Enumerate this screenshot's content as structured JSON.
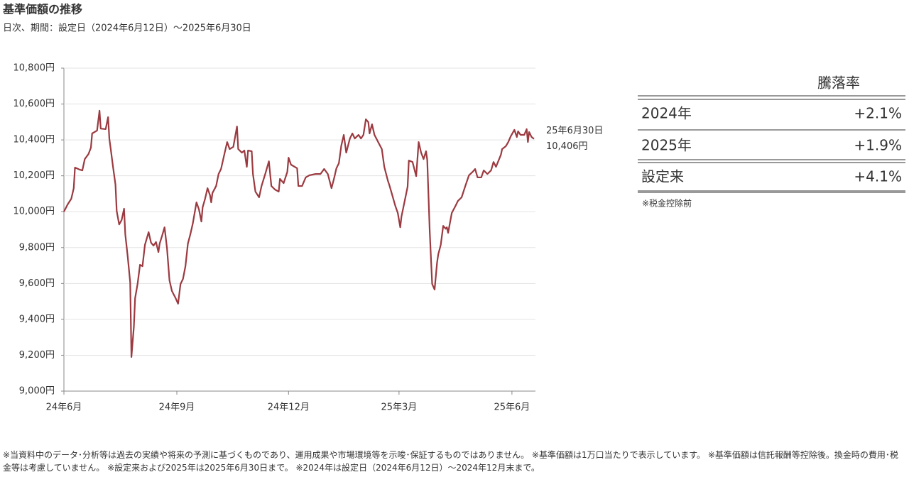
{
  "chart_data": {
    "type": "line",
    "title": "基準価額の推移",
    "subtitle": "日次、期間：設定日（2024年6月12日）～2025年6月30日",
    "color": "#9b3a40",
    "grid": true,
    "x": [
      "2024-06-12",
      "2024-06-15",
      "2024-06-18",
      "2024-06-20",
      "2024-06-21",
      "2024-06-25",
      "2024-06-27",
      "2024-06-29",
      "2024-07-02",
      "2024-07-04",
      "2024-07-05",
      "2024-07-09",
      "2024-07-11",
      "2024-07-12",
      "2024-07-16",
      "2024-07-18",
      "2024-07-19",
      "2024-07-20",
      "2024-07-22",
      "2024-07-24",
      "2024-07-25",
      "2024-07-27",
      "2024-07-29",
      "2024-07-31",
      "2024-08-01",
      "2024-08-03",
      "2024-08-05",
      "2024-08-06",
      "2024-08-08",
      "2024-08-09",
      "2024-08-11",
      "2024-08-13",
      "2024-08-15",
      "2024-08-17",
      "2024-08-19",
      "2024-08-20",
      "2024-08-22",
      "2024-08-24",
      "2024-08-26",
      "2024-08-28",
      "2024-08-29",
      "2024-08-31",
      "2024-09-02",
      "2024-09-04",
      "2024-09-06",
      "2024-09-08",
      "2024-09-11",
      "2024-09-13",
      "2024-09-15",
      "2024-09-17",
      "2024-09-19",
      "2024-09-21",
      "2024-09-23",
      "2024-09-25",
      "2024-09-28",
      "2024-09-30",
      "2024-10-02",
      "2024-10-03",
      "2024-10-05",
      "2024-10-07",
      "2024-10-09",
      "2024-10-10",
      "2024-10-11",
      "2024-10-14",
      "2024-10-16",
      "2024-10-18",
      "2024-10-21",
      "2024-10-23",
      "2024-10-25",
      "2024-10-28",
      "2024-10-31",
      "2024-11-01",
      "2024-11-04",
      "2024-11-06",
      "2024-11-08",
      "2024-11-09",
      "2024-11-12",
      "2024-11-13",
      "2024-11-15",
      "2024-11-18",
      "2024-11-20",
      "2024-11-23",
      "2024-11-26",
      "2024-11-28",
      "2024-12-01",
      "2024-12-04",
      "2024-12-05",
      "2024-12-08",
      "2024-12-11",
      "2024-12-12",
      "2024-12-14",
      "2024-12-19",
      "2024-12-20",
      "2024-12-23",
      "2024-12-26",
      "2024-12-29",
      "2025-01-03",
      "2025-01-07",
      "2025-01-10",
      "2025-01-13",
      "2025-01-16",
      "2025-01-18",
      "2025-01-20",
      "2025-01-22",
      "2025-01-24",
      "2025-01-26",
      "2025-01-28",
      "2025-01-31",
      "2025-02-02",
      "2025-02-04",
      "2025-02-07",
      "2025-02-09",
      "2025-02-11",
      "2025-02-13",
      "2025-02-15",
      "2025-02-16",
      "2025-02-18",
      "2025-02-20",
      "2025-02-23",
      "2025-02-26",
      "2025-02-28",
      "2025-03-03",
      "2025-03-04",
      "2025-03-06",
      "2025-03-09",
      "2025-03-11",
      "2025-03-13",
      "2025-03-14",
      "2025-03-17",
      "2025-03-19",
      "2025-03-20",
      "2025-03-23",
      "2025-03-26",
      "2025-03-28",
      "2025-03-30",
      "2025-04-01",
      "2025-04-03",
      "2025-04-04",
      "2025-04-06",
      "2025-04-08",
      "2025-04-10",
      "2025-04-12",
      "2025-04-13",
      "2025-04-15",
      "2025-04-17",
      "2025-04-19",
      "2025-04-20",
      "2025-04-21",
      "2025-04-24",
      "2025-04-27",
      "2025-04-29",
      "2025-05-02",
      "2025-05-05",
      "2025-05-08",
      "2025-05-11",
      "2025-05-13",
      "2025-05-15",
      "2025-05-18",
      "2025-05-20",
      "2025-05-23",
      "2025-05-26",
      "2025-05-28",
      "2025-05-30",
      "2025-06-03",
      "2025-06-04",
      "2025-06-07",
      "2025-06-09",
      "2025-06-11",
      "2025-06-14",
      "2025-06-16",
      "2025-06-17",
      "2025-06-19",
      "2025-06-22",
      "2025-06-24",
      "2025-06-25",
      "2025-06-26",
      "2025-06-28",
      "2025-06-30"
    ],
    "values": [
      10000,
      10040,
      10072,
      10131,
      10246,
      10234,
      10230,
      10293,
      10321,
      10357,
      10436,
      10452,
      10563,
      10463,
      10460,
      10527,
      10408,
      10357,
      10250,
      10151,
      10004,
      9929,
      9953,
      10017,
      9874,
      9748,
      9605,
      9190,
      9360,
      9518,
      9597,
      9704,
      9696,
      9815,
      9862,
      9886,
      9827,
      9811,
      9831,
      9775,
      9822,
      9866,
      9913,
      9795,
      9617,
      9558,
      9518,
      9487,
      9597,
      9625,
      9696,
      9822,
      9874,
      9934,
      10052,
      10013,
      9945,
      10024,
      10072,
      10131,
      10092,
      10052,
      10104,
      10143,
      10210,
      10238,
      10329,
      10388,
      10349,
      10361,
      10475,
      10349,
      10329,
      10341,
      10250,
      10341,
      10337,
      10210,
      10112,
      10080,
      10143,
      10210,
      10281,
      10143,
      10123,
      10112,
      10183,
      10159,
      10222,
      10301,
      10262,
      10242,
      10143,
      10143,
      10191,
      10203,
      10210,
      10210,
      10238,
      10210,
      10131,
      10183,
      10242,
      10270,
      10369,
      10428,
      10329,
      10408,
      10436,
      10408,
      10428,
      10408,
      10428,
      10515,
      10499,
      10436,
      10487,
      10428,
      10388,
      10349,
      10250,
      10171,
      10151,
      10104,
      10032,
      9993,
      9913,
      9973,
      10072,
      10139,
      10285,
      10277,
      10198,
      10388,
      10329,
      10293,
      10337,
      10289,
      9894,
      9597,
      9566,
      9716,
      9763,
      9815,
      9921,
      9905,
      9913,
      9882,
      9993,
      10032,
      10060,
      10080,
      10143,
      10203,
      10222,
      10238,
      10191,
      10191,
      10230,
      10210,
      10230,
      10277,
      10250,
      10317,
      10349,
      10365,
      10388,
      10420,
      10456,
      10416,
      10448,
      10428,
      10428,
      10460,
      10388,
      10444,
      10416,
      10406
    ],
    "xlim": [
      "2024-06-12",
      "2025-06-30"
    ],
    "xticks": [
      {
        "value": "2024-06-12",
        "label": "24年6月"
      },
      {
        "value": "2024-09-12",
        "label": "24年9月"
      },
      {
        "value": "2024-12-12",
        "label": "24年12月"
      },
      {
        "value": "2025-03-12",
        "label": "25年3月"
      },
      {
        "value": "2025-06-12",
        "label": "25年6月"
      }
    ],
    "ylim": [
      9000,
      10800
    ],
    "yticks": [
      {
        "value": 9000,
        "label": "9,000円"
      },
      {
        "value": 9200,
        "label": "9,200円"
      },
      {
        "value": 9400,
        "label": "9,400円"
      },
      {
        "value": 9600,
        "label": "9,600円"
      },
      {
        "value": 9800,
        "label": "9,800円"
      },
      {
        "value": 10000,
        "label": "10,000円"
      },
      {
        "value": 10200,
        "label": "10,200円"
      },
      {
        "value": 10400,
        "label": "10,400円"
      },
      {
        "value": 10600,
        "label": "10,600円"
      },
      {
        "value": 10800,
        "label": "10,800円"
      }
    ],
    "annotation": {
      "x": "2025-06-30",
      "date_label": "25年6月30日",
      "value": 10406,
      "label": "10,406円"
    }
  },
  "table": {
    "header": "騰落率",
    "rows": [
      [
        "2024年",
        "+2.1%"
      ],
      [
        "2025年",
        "+1.9%"
      ],
      [
        "設定来",
        "+4.1%"
      ]
    ],
    "note": "※税金控除前"
  },
  "footnote": "※当資料中のデータ･分析等は過去の実績や将来の予測に基づくものであり、運用成果や市場環境等を示唆･保証するものではありません。 ※基準価額は1万口当たりで表示しています。 ※基準価額は信託報酬等控除後。換金時の費用･税金等は考慮していません。 ※設定来および2025年は2025年6月30日まで。 ※2024年は設定日（2024年6月12日）～2024年12月末まで。"
}
